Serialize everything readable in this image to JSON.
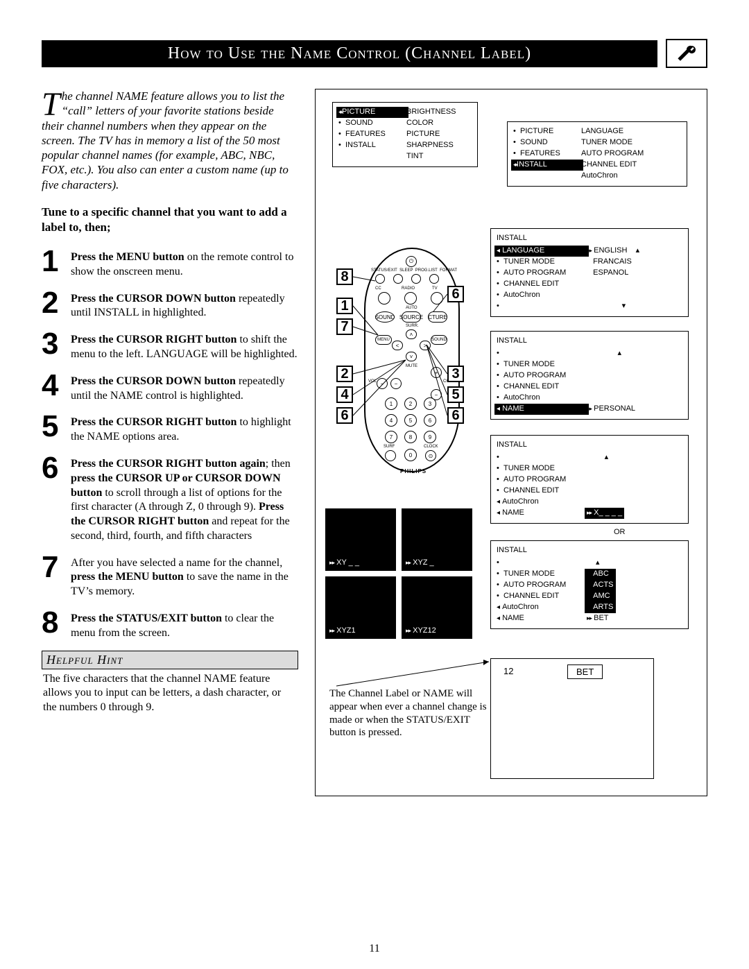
{
  "title": "How to Use the Name Control (Channel Label)",
  "intro_first_letter": "T",
  "intro_text": "he channel NAME feature allows you to list the “call” letters of your favorite stations beside their channel numbers when they appear on the screen.  The TV has in memory a list of the 50 most popular channel names (for example, ABC, NBC, FOX, etc.).  You also can enter a custom name (up to five characters).",
  "tune_line": "Tune to a specific channel that you want to add a label to, then;",
  "steps": [
    {
      "num": "1",
      "html": "<b>Press the MENU button</b> on the remote control to show the onscreen menu."
    },
    {
      "num": "2",
      "html": "<b>Press the CURSOR DOWN button</b> repeatedly until INSTALL in highlighted."
    },
    {
      "num": "3",
      "html": "<b>Press the CURSOR RIGHT button</b> to shift the menu to the left. LANGUAGE will be highlighted."
    },
    {
      "num": "4",
      "html": "<b>Press the CURSOR DOWN button</b> repeatedly until the NAME control is highlighted."
    },
    {
      "num": "5",
      "html": "<b>Press the CURSOR RIGHT button</b> to highlight the NAME options area."
    },
    {
      "num": "6",
      "html": "<b>Press the CURSOR RIGHT button again</b>; then <b>press the CURSOR UP or CURSOR DOWN button</b> to scroll through a list of options for the first character (A through Z, 0 through 9).  <b>Press the CURSOR RIGHT button</b> and repeat for the second, third, fourth, and fifth characters"
    },
    {
      "num": "7",
      "html": "After you have selected a name for the channel, <b>press the MENU button</b> to save the name in the TV’s memory."
    },
    {
      "num": "8",
      "html": "<b>Press the STATUS/EXIT button</b> to clear the menu from the screen."
    }
  ],
  "hint_title": "Helpful Hint",
  "hint_body": "The five characters that the channel NAME feature allows you to input can be letters, a dash character, or the numbers 0 through 9.",
  "page_number": "11",
  "menu1": {
    "left": [
      "PICTURE",
      "SOUND",
      "FEATURES",
      "INSTALL"
    ],
    "right": [
      "BRIGHTNESS",
      "COLOR",
      "PICTURE",
      "SHARPNESS",
      "TINT"
    ],
    "sel": 0
  },
  "menu2": {
    "left": [
      "PICTURE",
      "SOUND",
      "FEATURES",
      "INSTALL"
    ],
    "right": [
      "LANGUAGE",
      "TUNER MODE",
      "AUTO PROGRAM",
      "CHANNEL EDIT",
      "AutoChron"
    ],
    "sel": 3
  },
  "menu3": {
    "title": "INSTALL",
    "left": [
      "LANGUAGE",
      "TUNER MODE",
      "AUTO PROGRAM",
      "CHANNEL EDIT",
      "AutoChron"
    ],
    "right": [
      "ENGLISH",
      "FRANCAIS",
      "ESPANOL"
    ],
    "sel": 0
  },
  "menu4": {
    "title": "INSTALL",
    "left": [
      "",
      "TUNER MODE",
      "AUTO PROGRAM",
      "CHANNEL EDIT",
      "AutoChron",
      "NAME"
    ],
    "right_label": "PERSONAL",
    "sel": 5
  },
  "menu5": {
    "title": "INSTALL",
    "left": [
      "",
      "TUNER MODE",
      "AUTO PROGRAM",
      "CHANNEL EDIT",
      "AutoChron",
      "NAME"
    ],
    "right_label": "X_ _ _ _",
    "sel": 5,
    "sel_right": true
  },
  "menu6": {
    "title": "INSTALL",
    "left": [
      "",
      "TUNER MODE",
      "AUTO PROGRAM",
      "CHANNEL EDIT",
      "AutoChron",
      "NAME"
    ],
    "right": [
      "ABC",
      "ACTS",
      "AMC",
      "ARTS",
      "BET"
    ],
    "sel": 5,
    "sel_right": 4
  },
  "or_label": "OR",
  "name_previews": [
    "XY _ _",
    "XYZ _",
    "XYZ1",
    "XYZ12"
  ],
  "footer_note": "The Channel Label or NAME will appear when ever a channel change is made or when the STATUS/EXIT button is pressed.",
  "result": {
    "ch": "12",
    "name": "BET"
  },
  "remote_brand": "PHILIPS",
  "callouts_left": [
    "8",
    "1",
    "7",
    "2",
    "4",
    "6"
  ],
  "callouts_right": [
    "6",
    "3",
    "5",
    "6"
  ],
  "colors": {
    "black": "#000000",
    "white": "#ffffff",
    "hint_bg": "#dcdcdc"
  }
}
